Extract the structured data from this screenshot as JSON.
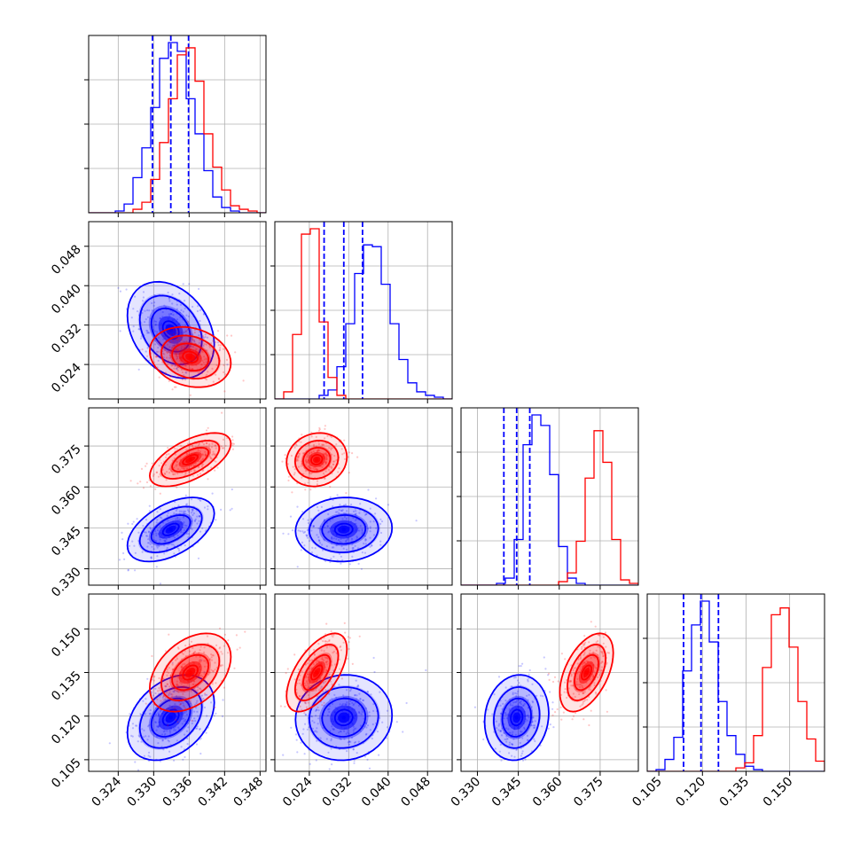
{
  "chart_data": {
    "type": "corner",
    "parameters": [
      {
        "name": "",
        "range": [
          0.319,
          0.349
        ],
        "ticks": [
          "0.324",
          "0.330",
          "0.336",
          "0.342",
          "0.348"
        ]
      },
      {
        "name": "",
        "range": [
          0.017,
          0.053
        ],
        "ticks": [
          "0.024",
          "0.032",
          "0.040",
          "0.048"
        ]
      },
      {
        "name": "",
        "range": [
          0.324,
          0.389
        ],
        "ticks": [
          "0.330",
          "0.345",
          "0.360",
          "0.375"
        ]
      },
      {
        "name": "",
        "range": [
          0.101,
          0.162
        ],
        "ticks": [
          "0.105",
          "0.120",
          "0.135",
          "0.150"
        ]
      }
    ],
    "series": [
      {
        "name": "",
        "color": "#0000ff",
        "quantiles": [
          [
            0.3298,
            0.3329,
            0.3359
          ],
          [
            0.027,
            0.031,
            0.0348
          ],
          [
            0.3397,
            0.3444,
            0.3492
          ],
          [
            0.1135,
            0.1195,
            0.1255
          ]
        ],
        "mean": [
          0.3329,
          0.031,
          0.3444,
          0.1195
        ],
        "std": [
          0.003,
          0.004,
          0.0048,
          0.006
        ],
        "corr": [
          [
            1,
            -0.3,
            0.5,
            0.35
          ],
          [
            -0.3,
            1,
            0.05,
            0.05
          ],
          [
            0.5,
            0.05,
            1,
            0.1
          ],
          [
            0.35,
            0.05,
            0.1,
            1
          ]
        ],
        "hist_x0": [
          0.319,
          0.017,
          0.324,
          0.101
        ],
        "hist_bw": [
          0.0015,
          0.0018,
          0.00325,
          0.00305
        ],
        "hist_counts": [
          [
            0,
            0,
            0,
            1,
            5,
            20,
            37,
            60,
            88,
            97,
            92,
            65,
            45,
            24,
            9,
            3,
            1,
            0,
            0,
            0
          ],
          [
            0,
            0,
            0,
            0,
            0,
            2,
            5,
            18,
            42,
            70,
            86,
            85,
            64,
            42,
            22,
            9,
            4,
            2,
            1,
            0
          ],
          [
            0,
            0,
            0,
            0,
            1,
            4,
            26,
            80,
            97,
            91,
            63,
            22,
            4,
            1,
            0,
            0,
            0,
            0,
            0,
            0
          ],
          [
            0,
            1,
            7,
            20,
            59,
            86,
            100,
            76,
            41,
            21,
            10,
            3,
            1,
            0,
            0,
            0,
            0,
            0,
            0,
            0
          ]
        ]
      },
      {
        "name": "",
        "color": "#ff0000",
        "mean": [
          0.3362,
          0.0255,
          0.37,
          0.135
        ],
        "std": [
          0.0028,
          0.0025,
          0.004,
          0.0055
        ],
        "corr": [
          [
            1,
            -0.2,
            0.6,
            0.4
          ],
          [
            -0.2,
            1,
            0.1,
            0.6
          ],
          [
            0.6,
            0.1,
            1,
            0.5
          ],
          [
            0.4,
            0.6,
            0.5,
            1
          ]
        ],
        "hist_x0": [
          0.319,
          0.017,
          0.324,
          0.101
        ],
        "hist_bw": [
          0.0015,
          0.0018,
          0.00325,
          0.00305
        ],
        "hist_counts": [
          [
            0,
            0,
            0,
            0,
            0,
            2,
            6,
            19,
            40,
            65,
            90,
            94,
            75,
            45,
            26,
            13,
            4,
            2,
            1,
            0
          ],
          [
            0,
            4,
            36,
            92,
            95,
            43,
            12,
            2,
            0,
            0,
            0,
            0,
            0,
            0,
            0,
            0,
            0,
            0,
            0,
            0
          ],
          [
            0,
            0,
            0,
            0,
            0,
            0,
            0,
            0,
            0,
            0,
            0,
            2,
            7,
            25,
            61,
            88,
            70,
            26,
            3,
            1
          ],
          [
            0,
            0,
            0,
            0,
            0,
            0,
            0,
            0,
            0,
            0,
            2,
            5,
            21,
            61,
            92,
            96,
            73,
            41,
            19,
            6
          ]
        ]
      }
    ],
    "grid": true,
    "legend": "none"
  }
}
